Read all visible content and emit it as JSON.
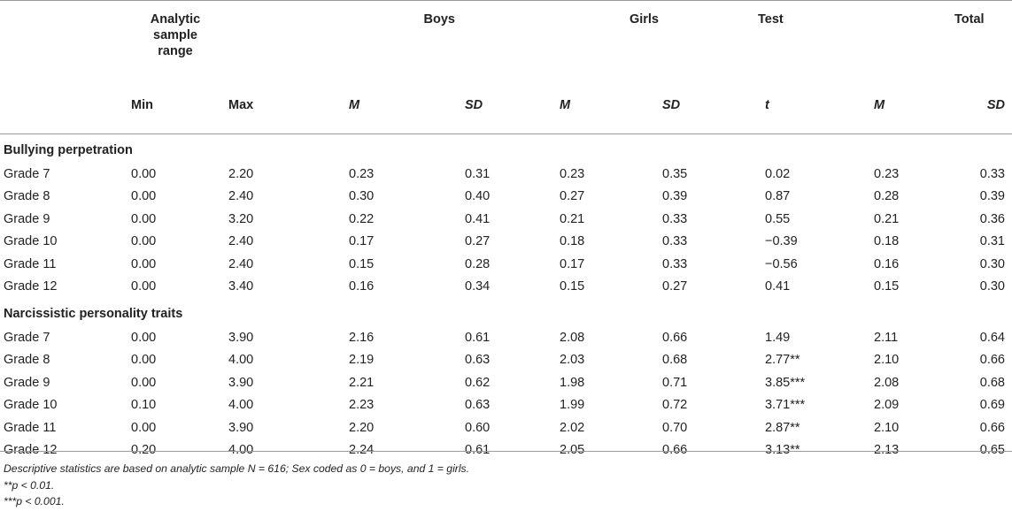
{
  "headers": {
    "row1": [
      "",
      "Analytic sample range",
      "",
      "Boys",
      "",
      "Girls",
      "",
      "Test",
      "Total",
      ""
    ],
    "analytic_label": "Analytic\nsample\nrange",
    "boys": "Boys",
    "girls": "Girls",
    "test": "Test",
    "total": "Total",
    "row2": [
      "",
      "Min",
      "Max",
      "M",
      "SD",
      "M",
      "SD",
      "t",
      "M",
      "SD"
    ]
  },
  "sections": [
    {
      "title": "Bullying perpetration",
      "rows": [
        [
          "Grade 7",
          "0.00",
          "2.20",
          "0.23",
          "0.31",
          "0.23",
          "0.35",
          "0.02",
          "0.23",
          "0.33"
        ],
        [
          "Grade 8",
          "0.00",
          "2.40",
          "0.30",
          "0.40",
          "0.27",
          "0.39",
          "0.87",
          "0.28",
          "0.39"
        ],
        [
          "Grade 9",
          "0.00",
          "3.20",
          "0.22",
          "0.41",
          "0.21",
          "0.33",
          "0.55",
          "0.21",
          "0.36"
        ],
        [
          "Grade 10",
          "0.00",
          "2.40",
          "0.17",
          "0.27",
          "0.18",
          "0.33",
          "−0.39",
          "0.18",
          "0.31"
        ],
        [
          "Grade 11",
          "0.00",
          "2.40",
          "0.15",
          "0.28",
          "0.17",
          "0.33",
          "−0.56",
          "0.16",
          "0.30"
        ],
        [
          "Grade 12",
          "0.00",
          "3.40",
          "0.16",
          "0.34",
          "0.15",
          "0.27",
          "0.41",
          "0.15",
          "0.30"
        ]
      ]
    },
    {
      "title": "Narcissistic personality traits",
      "rows": [
        [
          "Grade 7",
          "0.00",
          "3.90",
          "2.16",
          "0.61",
          "2.08",
          "0.66",
          "1.49",
          "2.11",
          "0.64"
        ],
        [
          "Grade 8",
          "0.00",
          "4.00",
          "2.19",
          "0.63",
          "2.03",
          "0.68",
          "2.77**",
          "2.10",
          "0.66"
        ],
        [
          "Grade 9",
          "0.00",
          "3.90",
          "2.21",
          "0.62",
          "1.98",
          "0.71",
          "3.85***",
          "2.08",
          "0.68"
        ],
        [
          "Grade 10",
          "0.10",
          "4.00",
          "2.23",
          "0.63",
          "1.99",
          "0.72",
          "3.71***",
          "2.09",
          "0.69"
        ],
        [
          "Grade 11",
          "0.00",
          "3.90",
          "2.20",
          "0.60",
          "2.02",
          "0.70",
          "2.87**",
          "2.10",
          "0.66"
        ],
        [
          "Grade 12",
          "0.20",
          "4.00",
          "2.24",
          "0.61",
          "2.05",
          "0.66",
          "3.13**",
          "2.13",
          "0.65"
        ]
      ]
    }
  ],
  "notes": [
    "Descriptive statistics are based on analytic sample N = 616; Sex coded as 0 = boys, and 1 = girls.",
    "**p < 0.01.",
    "***p < 0.001."
  ]
}
